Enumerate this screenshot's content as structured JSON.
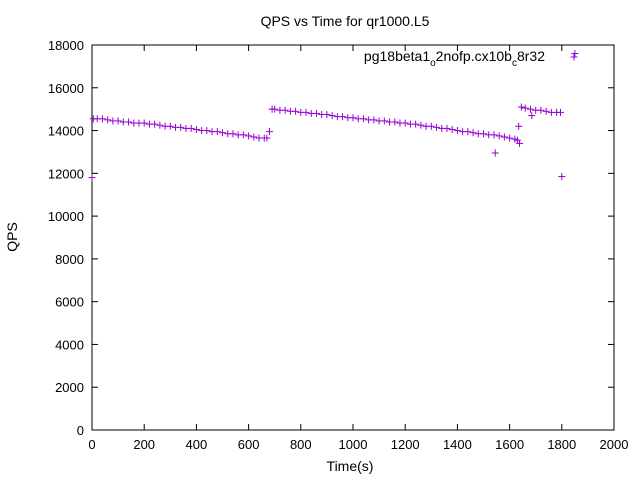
{
  "chart_data": {
    "type": "scatter",
    "title": "QPS vs Time for qr1000.L5",
    "xlabel": "Time(s)",
    "ylabel": "QPS",
    "xlim": [
      0,
      2000
    ],
    "ylim": [
      0,
      18000
    ],
    "xticks": [
      0,
      200,
      400,
      600,
      800,
      1000,
      1200,
      1400,
      1600,
      1800,
      2000
    ],
    "yticks": [
      0,
      2000,
      4000,
      6000,
      8000,
      10000,
      12000,
      14000,
      16000,
      18000
    ],
    "grid": false,
    "legend_position": "top-right",
    "marker": "+",
    "series": [
      {
        "name": "pg18beta1_o2nofp.cx10b_c8r32",
        "name_parts": {
          "a": "pg18beta1",
          "sub1": "o",
          "b": "2nofp.cx10b",
          "sub2": "c",
          "c": "8r32"
        },
        "color": "#9400d3",
        "points": [
          [
            0,
            11800
          ],
          [
            5,
            14550
          ],
          [
            20,
            14550
          ],
          [
            40,
            14550
          ],
          [
            60,
            14500
          ],
          [
            80,
            14450
          ],
          [
            100,
            14450
          ],
          [
            120,
            14400
          ],
          [
            140,
            14400
          ],
          [
            160,
            14350
          ],
          [
            180,
            14350
          ],
          [
            200,
            14350
          ],
          [
            220,
            14300
          ],
          [
            240,
            14300
          ],
          [
            260,
            14250
          ],
          [
            280,
            14200
          ],
          [
            300,
            14200
          ],
          [
            320,
            14150
          ],
          [
            340,
            14150
          ],
          [
            360,
            14100
          ],
          [
            380,
            14100
          ],
          [
            400,
            14050
          ],
          [
            420,
            14000
          ],
          [
            440,
            14000
          ],
          [
            460,
            13950
          ],
          [
            480,
            13950
          ],
          [
            500,
            13900
          ],
          [
            520,
            13850
          ],
          [
            540,
            13850
          ],
          [
            560,
            13800
          ],
          [
            580,
            13800
          ],
          [
            600,
            13750
          ],
          [
            620,
            13700
          ],
          [
            640,
            13650
          ],
          [
            660,
            13650
          ],
          [
            670,
            13650
          ],
          [
            680,
            13950
          ],
          [
            690,
            15000
          ],
          [
            700,
            15000
          ],
          [
            720,
            14950
          ],
          [
            740,
            14950
          ],
          [
            760,
            14900
          ],
          [
            780,
            14900
          ],
          [
            800,
            14850
          ],
          [
            820,
            14850
          ],
          [
            840,
            14800
          ],
          [
            860,
            14800
          ],
          [
            880,
            14750
          ],
          [
            900,
            14750
          ],
          [
            920,
            14700
          ],
          [
            940,
            14650
          ],
          [
            960,
            14650
          ],
          [
            980,
            14600
          ],
          [
            1000,
            14600
          ],
          [
            1020,
            14550
          ],
          [
            1040,
            14550
          ],
          [
            1060,
            14500
          ],
          [
            1080,
            14500
          ],
          [
            1100,
            14450
          ],
          [
            1120,
            14450
          ],
          [
            1140,
            14400
          ],
          [
            1160,
            14400
          ],
          [
            1180,
            14350
          ],
          [
            1200,
            14350
          ],
          [
            1220,
            14300
          ],
          [
            1240,
            14300
          ],
          [
            1260,
            14250
          ],
          [
            1280,
            14200
          ],
          [
            1300,
            14200
          ],
          [
            1320,
            14150
          ],
          [
            1340,
            14100
          ],
          [
            1360,
            14100
          ],
          [
            1380,
            14050
          ],
          [
            1400,
            14000
          ],
          [
            1420,
            13950
          ],
          [
            1440,
            13950
          ],
          [
            1460,
            13900
          ],
          [
            1480,
            13850
          ],
          [
            1500,
            13850
          ],
          [
            1520,
            13800
          ],
          [
            1540,
            13800
          ],
          [
            1545,
            12950
          ],
          [
            1560,
            13750
          ],
          [
            1580,
            13700
          ],
          [
            1600,
            13650
          ],
          [
            1620,
            13600
          ],
          [
            1630,
            13550
          ],
          [
            1635,
            14200
          ],
          [
            1638,
            13400
          ],
          [
            1645,
            15100
          ],
          [
            1660,
            15050
          ],
          [
            1680,
            15000
          ],
          [
            1685,
            14700
          ],
          [
            1700,
            14950
          ],
          [
            1720,
            14950
          ],
          [
            1740,
            14900
          ],
          [
            1760,
            14850
          ],
          [
            1780,
            14850
          ],
          [
            1795,
            14850
          ],
          [
            1800,
            11850
          ],
          [
            1850,
            17600
          ]
        ]
      }
    ]
  }
}
